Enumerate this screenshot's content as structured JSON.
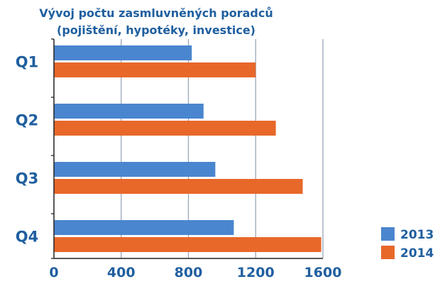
{
  "chart_data": {
    "type": "bar",
    "orientation": "horizontal",
    "title_lines": [
      "Vývoj počtu zasmluvněných poradců",
      "(pojištění, hypotéky, investice)"
    ],
    "categories": [
      "Q1",
      "Q2",
      "Q3",
      "Q4"
    ],
    "series": [
      {
        "name": "2013",
        "values": [
          820,
          890,
          960,
          1070
        ],
        "color": "#4a86cf"
      },
      {
        "name": "2014",
        "values": [
          1200,
          1320,
          1480,
          1590
        ],
        "color": "#e8682a"
      }
    ],
    "xlim": [
      0,
      1600
    ],
    "xticks": [
      "0",
      "400",
      "800",
      "1200",
      "1600"
    ],
    "grid": "vertical",
    "legend_position": "bottom-right",
    "colors": {
      "text": "#1f5f9f",
      "grid": "#9aa6b8",
      "axis": "#222222"
    }
  }
}
